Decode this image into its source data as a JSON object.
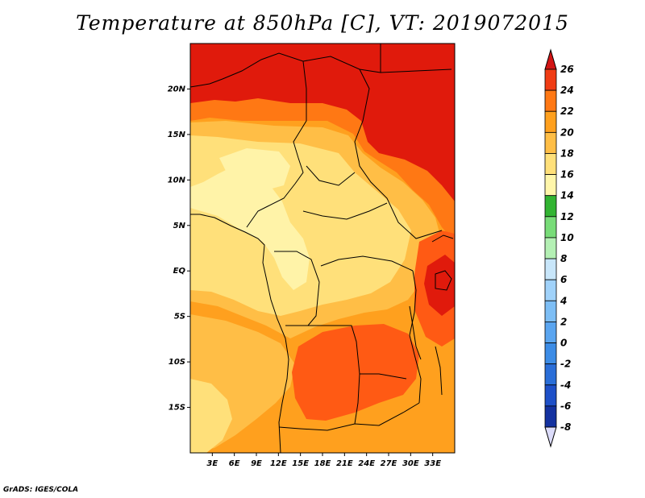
{
  "title": "Temperature at 850hPa [C], VT: 2019072015",
  "credit": "GrADS: IGES/COLA",
  "map": {
    "lon_range": [
      0,
      36
    ],
    "lat_range": [
      -20,
      25
    ],
    "lat_ticks": [
      {
        "value": 20,
        "label": "20N"
      },
      {
        "value": 15,
        "label": "15N"
      },
      {
        "value": 10,
        "label": "10N"
      },
      {
        "value": 5,
        "label": "5N"
      },
      {
        "value": 0,
        "label": "EQ"
      },
      {
        "value": -5,
        "label": "5S"
      },
      {
        "value": -10,
        "label": "10S"
      },
      {
        "value": -15,
        "label": "15S"
      }
    ],
    "lon_ticks": [
      {
        "value": 3,
        "label": "3E"
      },
      {
        "value": 6,
        "label": "6E"
      },
      {
        "value": 9,
        "label": "9E"
      },
      {
        "value": 12,
        "label": "12E"
      },
      {
        "value": 15,
        "label": "15E"
      },
      {
        "value": 18,
        "label": "18E"
      },
      {
        "value": 21,
        "label": "21E"
      },
      {
        "value": 24,
        "label": "24E"
      },
      {
        "value": 27,
        "label": "27E"
      },
      {
        "value": 30,
        "label": "30E"
      },
      {
        "value": 33,
        "label": "33E"
      }
    ]
  },
  "colorbar": {
    "levels": [
      {
        "label": "-8",
        "color": "#0a0a78"
      },
      {
        "label": "-6",
        "color": "#1432a0"
      },
      {
        "label": "-4",
        "color": "#1e50c8"
      },
      {
        "label": "-2",
        "color": "#2a6ed8"
      },
      {
        "label": "0",
        "color": "#3c8ce6"
      },
      {
        "label": "2",
        "color": "#5aa5f0"
      },
      {
        "label": "4",
        "color": "#7dbef5"
      },
      {
        "label": "6",
        "color": "#a0d2fa"
      },
      {
        "label": "8",
        "color": "#c8e6fa"
      },
      {
        "label": "10",
        "color": "#b4f0b4"
      },
      {
        "label": "12",
        "color": "#78dc78"
      },
      {
        "label": "14",
        "color": "#32b432"
      },
      {
        "label": "16",
        "color": "#fff6aa"
      },
      {
        "label": "18",
        "color": "#ffe07a"
      },
      {
        "label": "20",
        "color": "#ffbe46"
      },
      {
        "label": "22",
        "color": "#ffa01e"
      },
      {
        "label": "24",
        "color": "#ff7814"
      },
      {
        "label": "26",
        "color": "#f03c14"
      }
    ],
    "below_color": "#dcdcfa",
    "above_color": "#d21414"
  }
}
